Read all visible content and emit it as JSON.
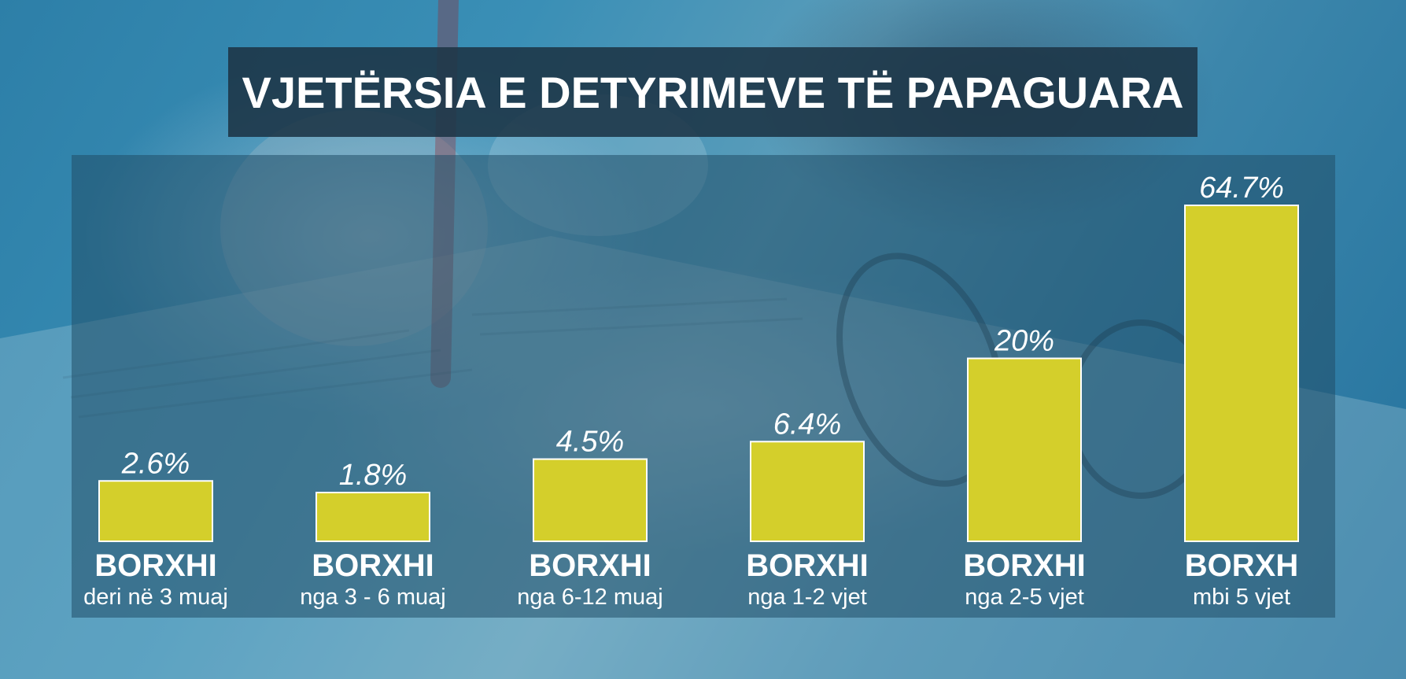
{
  "title": "VJETËRSIA E DETYRIMEVE TË PAPAGUARA",
  "colors": {
    "bar": "#d4cf2b",
    "title_bar": "#1c3446",
    "text": "#ffffff"
  },
  "chart_data": {
    "type": "bar",
    "title": "VJETËRSIA E DETYRIMEVE TË PAPAGUARA",
    "categories": [
      {
        "main": "BORXHI",
        "sub": "deri në 3 muaj"
      },
      {
        "main": "BORXHI",
        "sub": "nga 3 - 6 muaj"
      },
      {
        "main": "BORXHI",
        "sub": "nga 6-12 muaj"
      },
      {
        "main": "BORXHI",
        "sub": "nga 1-2 vjet"
      },
      {
        "main": "BORXHI",
        "sub": "nga 2-5 vjet"
      },
      {
        "main": "BORXH",
        "sub": "mbi 5 vjet"
      }
    ],
    "values": [
      2.6,
      1.8,
      4.5,
      6.4,
      20,
      64.7
    ],
    "value_labels": [
      "2.6%",
      "1.8%",
      "4.5%",
      "6.4%",
      "20%",
      "64.7%"
    ],
    "unit": "%",
    "grid": false,
    "legend": false
  }
}
